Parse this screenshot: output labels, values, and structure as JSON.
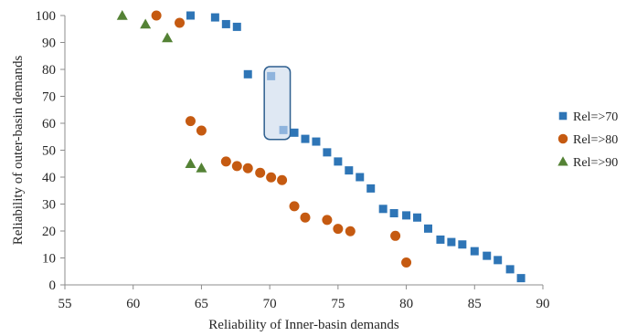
{
  "chart_data": {
    "type": "scatter",
    "xlabel": "Reliability of Inner-basin demands",
    "ylabel": "Reliability of outer-basin demands",
    "xlim": [
      55,
      90
    ],
    "ylim": [
      0,
      100
    ],
    "xticks": [
      55,
      60,
      65,
      70,
      75,
      80,
      85,
      90
    ],
    "yticks": [
      0,
      10,
      20,
      30,
      40,
      50,
      60,
      70,
      80,
      90,
      100
    ],
    "grid": false,
    "legend_position": "right",
    "highlight_box": {
      "x_range": [
        69.6,
        71.5
      ],
      "y_range": [
        54,
        81
      ]
    },
    "series": [
      {
        "name": "Rel=>70",
        "marker": "square",
        "color": "#2e75b6",
        "points": [
          [
            64.2,
            100
          ],
          [
            66.0,
            99.3
          ],
          [
            66.8,
            96.8
          ],
          [
            67.6,
            95.8
          ],
          [
            68.4,
            78.2
          ],
          [
            70.1,
            77.5
          ],
          [
            71.0,
            57.5
          ],
          [
            71.8,
            56.5
          ],
          [
            72.6,
            54.2
          ],
          [
            73.4,
            53.2
          ],
          [
            74.2,
            49.2
          ],
          [
            75.0,
            45.8
          ],
          [
            75.8,
            42.5
          ],
          [
            76.6,
            40.0
          ],
          [
            77.4,
            35.8
          ],
          [
            78.3,
            28.2
          ],
          [
            79.1,
            26.6
          ],
          [
            80.0,
            25.8
          ],
          [
            80.8,
            25.0
          ],
          [
            81.6,
            20.9
          ],
          [
            82.5,
            16.8
          ],
          [
            83.3,
            15.9
          ],
          [
            84.1,
            15.0
          ],
          [
            85.0,
            12.5
          ],
          [
            85.9,
            10.8
          ],
          [
            86.7,
            9.2
          ],
          [
            87.6,
            5.8
          ],
          [
            88.4,
            2.5
          ]
        ]
      },
      {
        "name": "Rel=>80",
        "marker": "circle",
        "color": "#c55a11",
        "points": [
          [
            61.7,
            100
          ],
          [
            63.4,
            97.3
          ],
          [
            64.2,
            60.8
          ],
          [
            65.0,
            57.3
          ],
          [
            66.8,
            45.8
          ],
          [
            67.6,
            44.1
          ],
          [
            68.4,
            43.3
          ],
          [
            69.3,
            41.6
          ],
          [
            70.1,
            39.9
          ],
          [
            70.9,
            38.9
          ],
          [
            71.8,
            29.2
          ],
          [
            72.6,
            25.0
          ],
          [
            74.2,
            24.1
          ],
          [
            75.0,
            20.8
          ],
          [
            75.9,
            19.9
          ],
          [
            79.2,
            18.2
          ],
          [
            80.0,
            8.3
          ]
        ]
      },
      {
        "name": "Rel=>90",
        "marker": "triangle",
        "color": "#548235",
        "points": [
          [
            59.2,
            100
          ],
          [
            60.9,
            96.8
          ],
          [
            62.5,
            91.7
          ],
          [
            64.2,
            45.0
          ],
          [
            65.0,
            43.4
          ]
        ]
      }
    ]
  }
}
